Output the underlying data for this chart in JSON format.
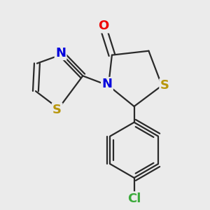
{
  "bg_color": "#ebebeb",
  "bond_color": "#2a2a2a",
  "atom_colors": {
    "S": "#b8960c",
    "N": "#0000dd",
    "O": "#ee0000",
    "Cl": "#3aaa3a",
    "C": "#2a2a2a"
  },
  "bond_width": 1.6,
  "fig_w": 3.0,
  "fig_h": 3.0,
  "dpi": 100,
  "xlim": [
    0,
    300
  ],
  "ylim": [
    0,
    300
  ],
  "font_size": 13
}
